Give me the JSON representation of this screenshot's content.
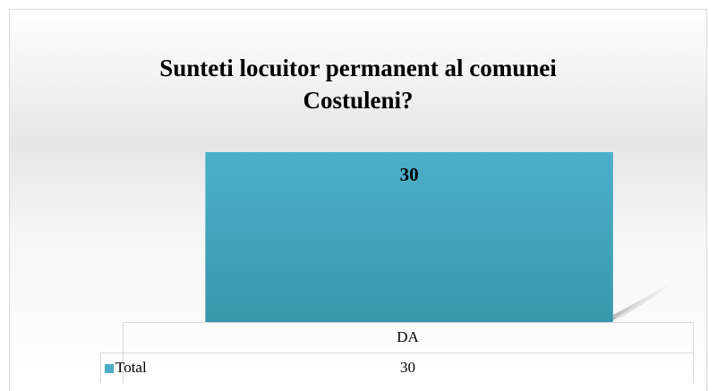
{
  "chart_data": {
    "type": "bar",
    "title": "Sunteti locuitor permanent al comunei Costuleni?",
    "categories": [
      "DA"
    ],
    "series": [
      {
        "name": "Total",
        "color": "#4bacc6",
        "values": [
          30
        ]
      }
    ]
  }
}
